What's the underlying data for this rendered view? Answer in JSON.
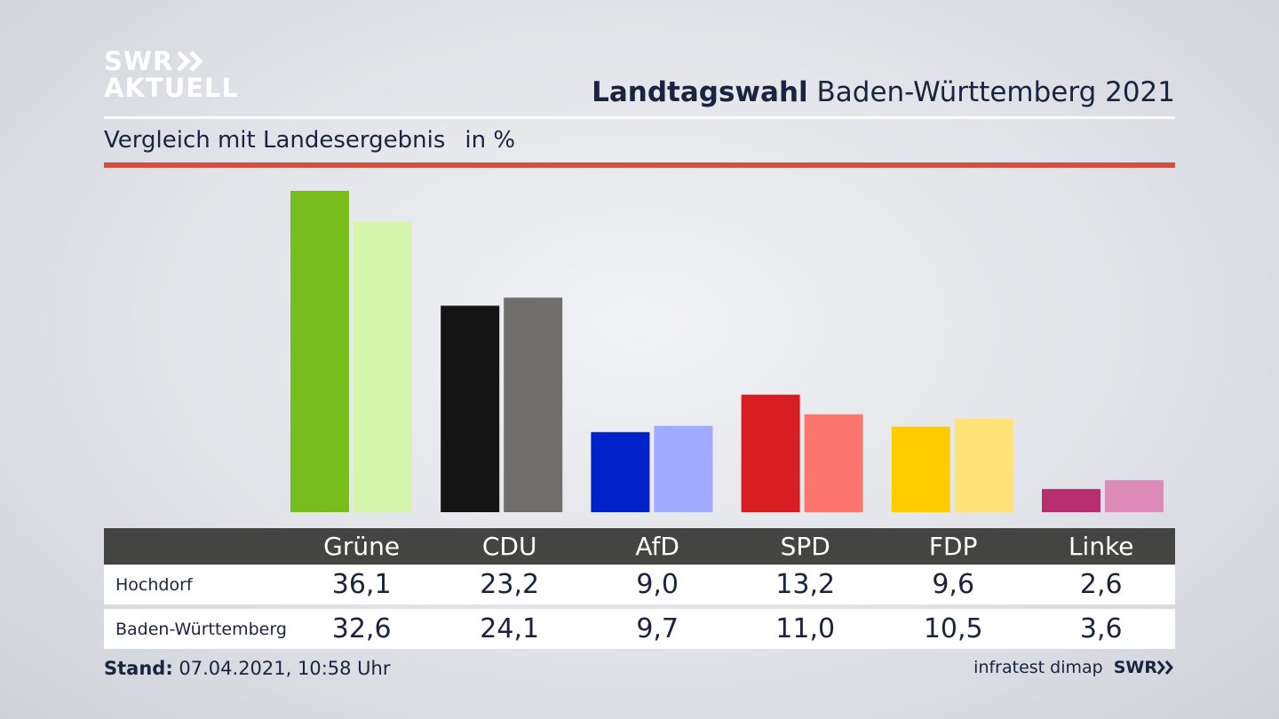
{
  "header": {
    "logo_line1": "SWR",
    "logo_line2": "AKTUELL",
    "title_bold": "Landtagswahl",
    "title_rest": " Baden-Württemberg 2021",
    "subtitle": "Vergleich mit Landesergebnis",
    "unit": "in %"
  },
  "table": {
    "parties": [
      "Grüne",
      "CDU",
      "AfD",
      "SPD",
      "FDP",
      "Linke"
    ],
    "rows": [
      {
        "label": "Hochdorf",
        "values": [
          "36,1",
          "23,2",
          "9,0",
          "13,2",
          "9,6",
          "2,6"
        ]
      },
      {
        "label": "Baden-Württemberg",
        "values": [
          "32,6",
          "24,1",
          "9,7",
          "11,0",
          "10,5",
          "3,6"
        ]
      }
    ]
  },
  "footer": {
    "stand_label": "Stand:",
    "stand_value": " 07.04.2021, 10:58 Uhr",
    "source": "infratest dimap",
    "brand": "SWR"
  },
  "colors": {
    "accent_red": "#d0513f",
    "header_bar": "#444442"
  },
  "chart_data": {
    "type": "bar",
    "title": "Landtagswahl Baden-Württemberg 2021",
    "subtitle": "Vergleich mit Landesergebnis",
    "ylabel": "in %",
    "categories": [
      "Grüne",
      "CDU",
      "AfD",
      "SPD",
      "FDP",
      "Linke"
    ],
    "ylim": [
      0,
      36.1
    ],
    "series": [
      {
        "name": "Hochdorf",
        "values": [
          36.1,
          23.2,
          9.0,
          13.2,
          9.6,
          2.6
        ],
        "colors": [
          "#78bc1e",
          "#141414",
          "#0022c8",
          "#d81e23",
          "#ffcc00",
          "#b82f70"
        ]
      },
      {
        "name": "Baden-Württemberg",
        "values": [
          32.6,
          24.1,
          9.7,
          11.0,
          10.5,
          3.6
        ],
        "colors": [
          "#d5f5ad",
          "#706f6d",
          "#9eabfe",
          "#ff7670",
          "#ffe378",
          "#de8bb8"
        ]
      }
    ]
  }
}
